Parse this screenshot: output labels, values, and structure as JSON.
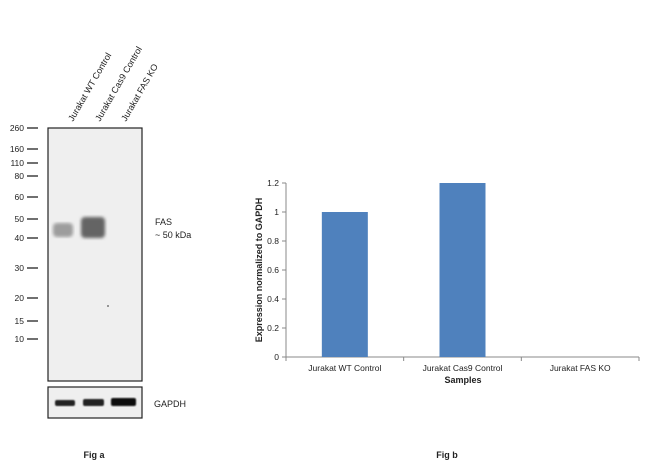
{
  "fig_a": {
    "label": "Fig a",
    "lanes": [
      "Jurakat WT Control",
      "Jurakat Cas9 Control",
      "Jurakat FAS KO"
    ],
    "markers": [
      "260",
      "160",
      "110",
      "80",
      "60",
      "50",
      "40",
      "30",
      "20",
      "15",
      "10"
    ],
    "marker_kda": [
      260,
      160,
      110,
      80,
      60,
      50,
      40,
      30,
      20,
      15,
      10
    ],
    "target_label": "FAS",
    "target_size": "~ 50 kDa",
    "loading_control": "GAPDH"
  },
  "fig_b": {
    "label": "Fig b"
  },
  "chart_data": {
    "type": "bar",
    "categories": [
      "Jurakat WT Control",
      "Jurakat Cas9 Control",
      "Jurakat FAS KO"
    ],
    "values": [
      1.0,
      1.2,
      0
    ],
    "xlabel": "Samples",
    "ylabel": "Expression  normalized to GAPDH",
    "ylim": [
      0,
      1.2
    ],
    "yticks": [
      "0",
      "0.2",
      "0.4",
      "0.6",
      "0.8",
      "1",
      "1.2"
    ],
    "ytick_values": [
      0,
      0.2,
      0.4,
      0.6,
      0.8,
      1,
      1.2
    ],
    "grid": false,
    "bar_color": "#4f81bd"
  }
}
